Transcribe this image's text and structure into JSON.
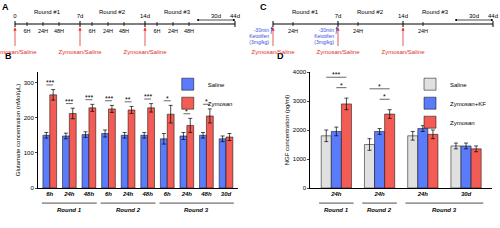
{
  "chart_data": [
    {
      "type": "bar",
      "panel": "B",
      "y_label": "Glutamate concentration (nMol/μL)",
      "categories": [
        "6h",
        "24h",
        "48h",
        "6h",
        "24h",
        "48h",
        "6h",
        "24h",
        "48h",
        "30d"
      ],
      "groups": [
        "Round 1",
        "Round 1",
        "Round 1",
        "Round 2",
        "Round 2",
        "Round 2",
        "Round 3",
        "Round 3",
        "Round 3",
        "Round 3"
      ],
      "series": [
        {
          "name": "Saline",
          "color": "#5b7cfa",
          "values": [
            150,
            148,
            152,
            155,
            150,
            150,
            140,
            148,
            150,
            140
          ],
          "errors": [
            8,
            8,
            8,
            10,
            8,
            8,
            15,
            10,
            8,
            8
          ]
        },
        {
          "name": "Zymosan",
          "color": "#f25c54",
          "values": [
            265,
            212,
            228,
            225,
            222,
            228,
            210,
            178,
            205,
            145
          ],
          "errors": [
            15,
            15,
            10,
            10,
            10,
            12,
            25,
            20,
            20,
            10
          ]
        }
      ],
      "significance": [
        "***",
        "***",
        "***",
        "***",
        "**",
        "***",
        "*",
        "*",
        "*",
        null
      ],
      "ylim": [
        0,
        330
      ],
      "yticks": [
        0,
        100,
        200,
        300
      ],
      "grid": false,
      "legend": "upper right"
    },
    {
      "type": "bar",
      "panel": "D",
      "y_label": "NGF concentration (pg/ml)",
      "categories": [
        "24h",
        "24h",
        "24h",
        "30d"
      ],
      "groups": [
        "Round 1",
        "Round 2",
        "Round 3",
        "Round 3"
      ],
      "series": [
        {
          "name": "Saline",
          "color": "#e0e0e0",
          "values": [
            1800,
            1500,
            1800,
            1450
          ],
          "errors": [
            200,
            200,
            150,
            100
          ]
        },
        {
          "name": "Zymosan+KF",
          "color": "#5b7cfa",
          "values": [
            1950,
            1950,
            2050,
            1450
          ],
          "errors": [
            150,
            100,
            100,
            100
          ]
        },
        {
          "name": "Zymosan",
          "color": "#f25c54",
          "values": [
            2900,
            2550,
            1850,
            1350
          ],
          "errors": [
            200,
            150,
            150,
            100
          ]
        }
      ],
      "comparisons": [
        {
          "at": 0,
          "from": "Zymosan+KF",
          "to": "Zymosan",
          "label": "*"
        },
        {
          "at": 0,
          "from": "Saline",
          "to": "Zymosan",
          "label": "***"
        },
        {
          "at": 1,
          "from": "Zymosan+KF",
          "to": "Zymosan",
          "label": "*"
        },
        {
          "at": 1,
          "from": "Saline",
          "to": "Zymosan",
          "label": "*"
        }
      ],
      "ylim": [
        0,
        4000
      ],
      "yticks": [
        0,
        1000,
        2000,
        3000,
        4000
      ],
      "grid": false,
      "legend": "upper right"
    }
  ],
  "timelines": [
    {
      "panel": "A",
      "rounds": [
        "Round #1",
        "Round #2",
        "Round #3"
      ],
      "days": [
        "0",
        "7d",
        "14d",
        "44d"
      ],
      "times": [
        [
          "6H",
          "24H",
          "48H"
        ],
        [
          "6H",
          "24H",
          "48H"
        ],
        [
          "6H",
          "24H",
          "48H"
        ]
      ],
      "tail": "30d",
      "injection": "Zymosan/Saline",
      "pretreatment": [
        null,
        null,
        null
      ]
    },
    {
      "panel": "C",
      "rounds": [
        "Round #1",
        "Round #2",
        "Round #3"
      ],
      "days": [
        null,
        "7d",
        "14d",
        "44d"
      ],
      "times": [
        [
          "24H"
        ],
        [
          "24H"
        ],
        [
          "24H"
        ]
      ],
      "tail": "30d",
      "injection": "Zymosan/Saline",
      "pretreatment": [
        [
          "-30min",
          "Ketotifen",
          "(3mg/kg)"
        ],
        [
          "-30min",
          "Ketotifen",
          "(3mg/kg)"
        ],
        null
      ]
    }
  ]
}
